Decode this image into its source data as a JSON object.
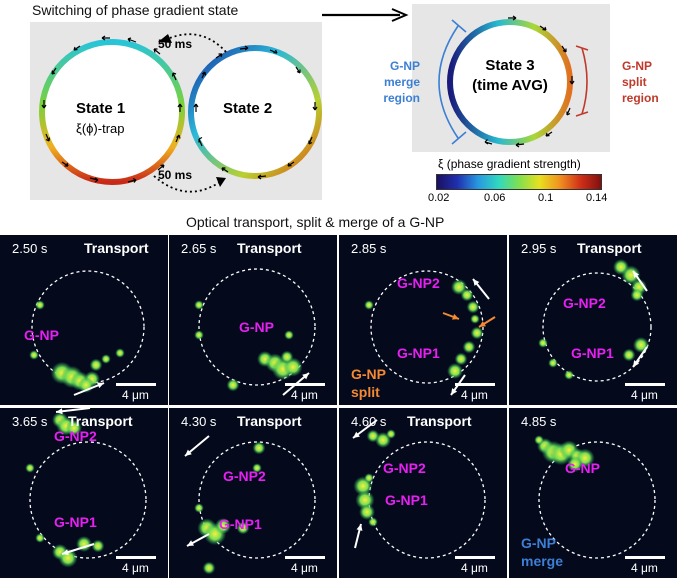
{
  "top": {
    "left_title": "Switching of phase gradient state",
    "state1": "State 1",
    "state1_sub": "ξ(ϕ)-trap",
    "state2": "State 2",
    "time_top": "50 ms",
    "time_bottom": "50 ms",
    "state3_line1": "State 3",
    "state3_line2": "(time AVG)",
    "merge_label": [
      "G-NP",
      "merge",
      "region"
    ],
    "split_label": [
      "G-NP",
      "split",
      "region"
    ],
    "colorbar_title": "ξ (phase gradient strength)",
    "colorbar_ticks": [
      "0.02",
      "0.06",
      "0.1",
      "0.14"
    ]
  },
  "middle_title": "Optical transport, split & merge of a G-NP",
  "scale_bar": "4 μm",
  "tiles": [
    {
      "time": "2.50 s",
      "mode": "Transport",
      "labels": [
        "G-NP"
      ]
    },
    {
      "time": "2.65 s",
      "mode": "Transport",
      "labels": [
        "G-NP"
      ]
    },
    {
      "time": "2.85 s",
      "mode": "",
      "labels": [
        "G-NP2",
        "G-NP1"
      ],
      "extra": [
        "G-NP",
        "split"
      ]
    },
    {
      "time": "2.95 s",
      "mode": "Transport",
      "labels": [
        "G-NP2",
        "G-NP1"
      ]
    },
    {
      "time": "3.65 s",
      "mode": "Transport",
      "labels": [
        "G-NP2",
        "G-NP1"
      ]
    },
    {
      "time": "4.30 s",
      "mode": "Transport",
      "labels": [
        "G-NP2",
        "G-NP1"
      ]
    },
    {
      "time": "4.60 s",
      "mode": "Transport",
      "labels": [
        "G-NP2",
        "G-NP1"
      ]
    },
    {
      "time": "4.85 s",
      "mode": "",
      "labels": [
        "G-NP"
      ],
      "extra": [
        "G-NP",
        "merge"
      ]
    }
  ]
}
